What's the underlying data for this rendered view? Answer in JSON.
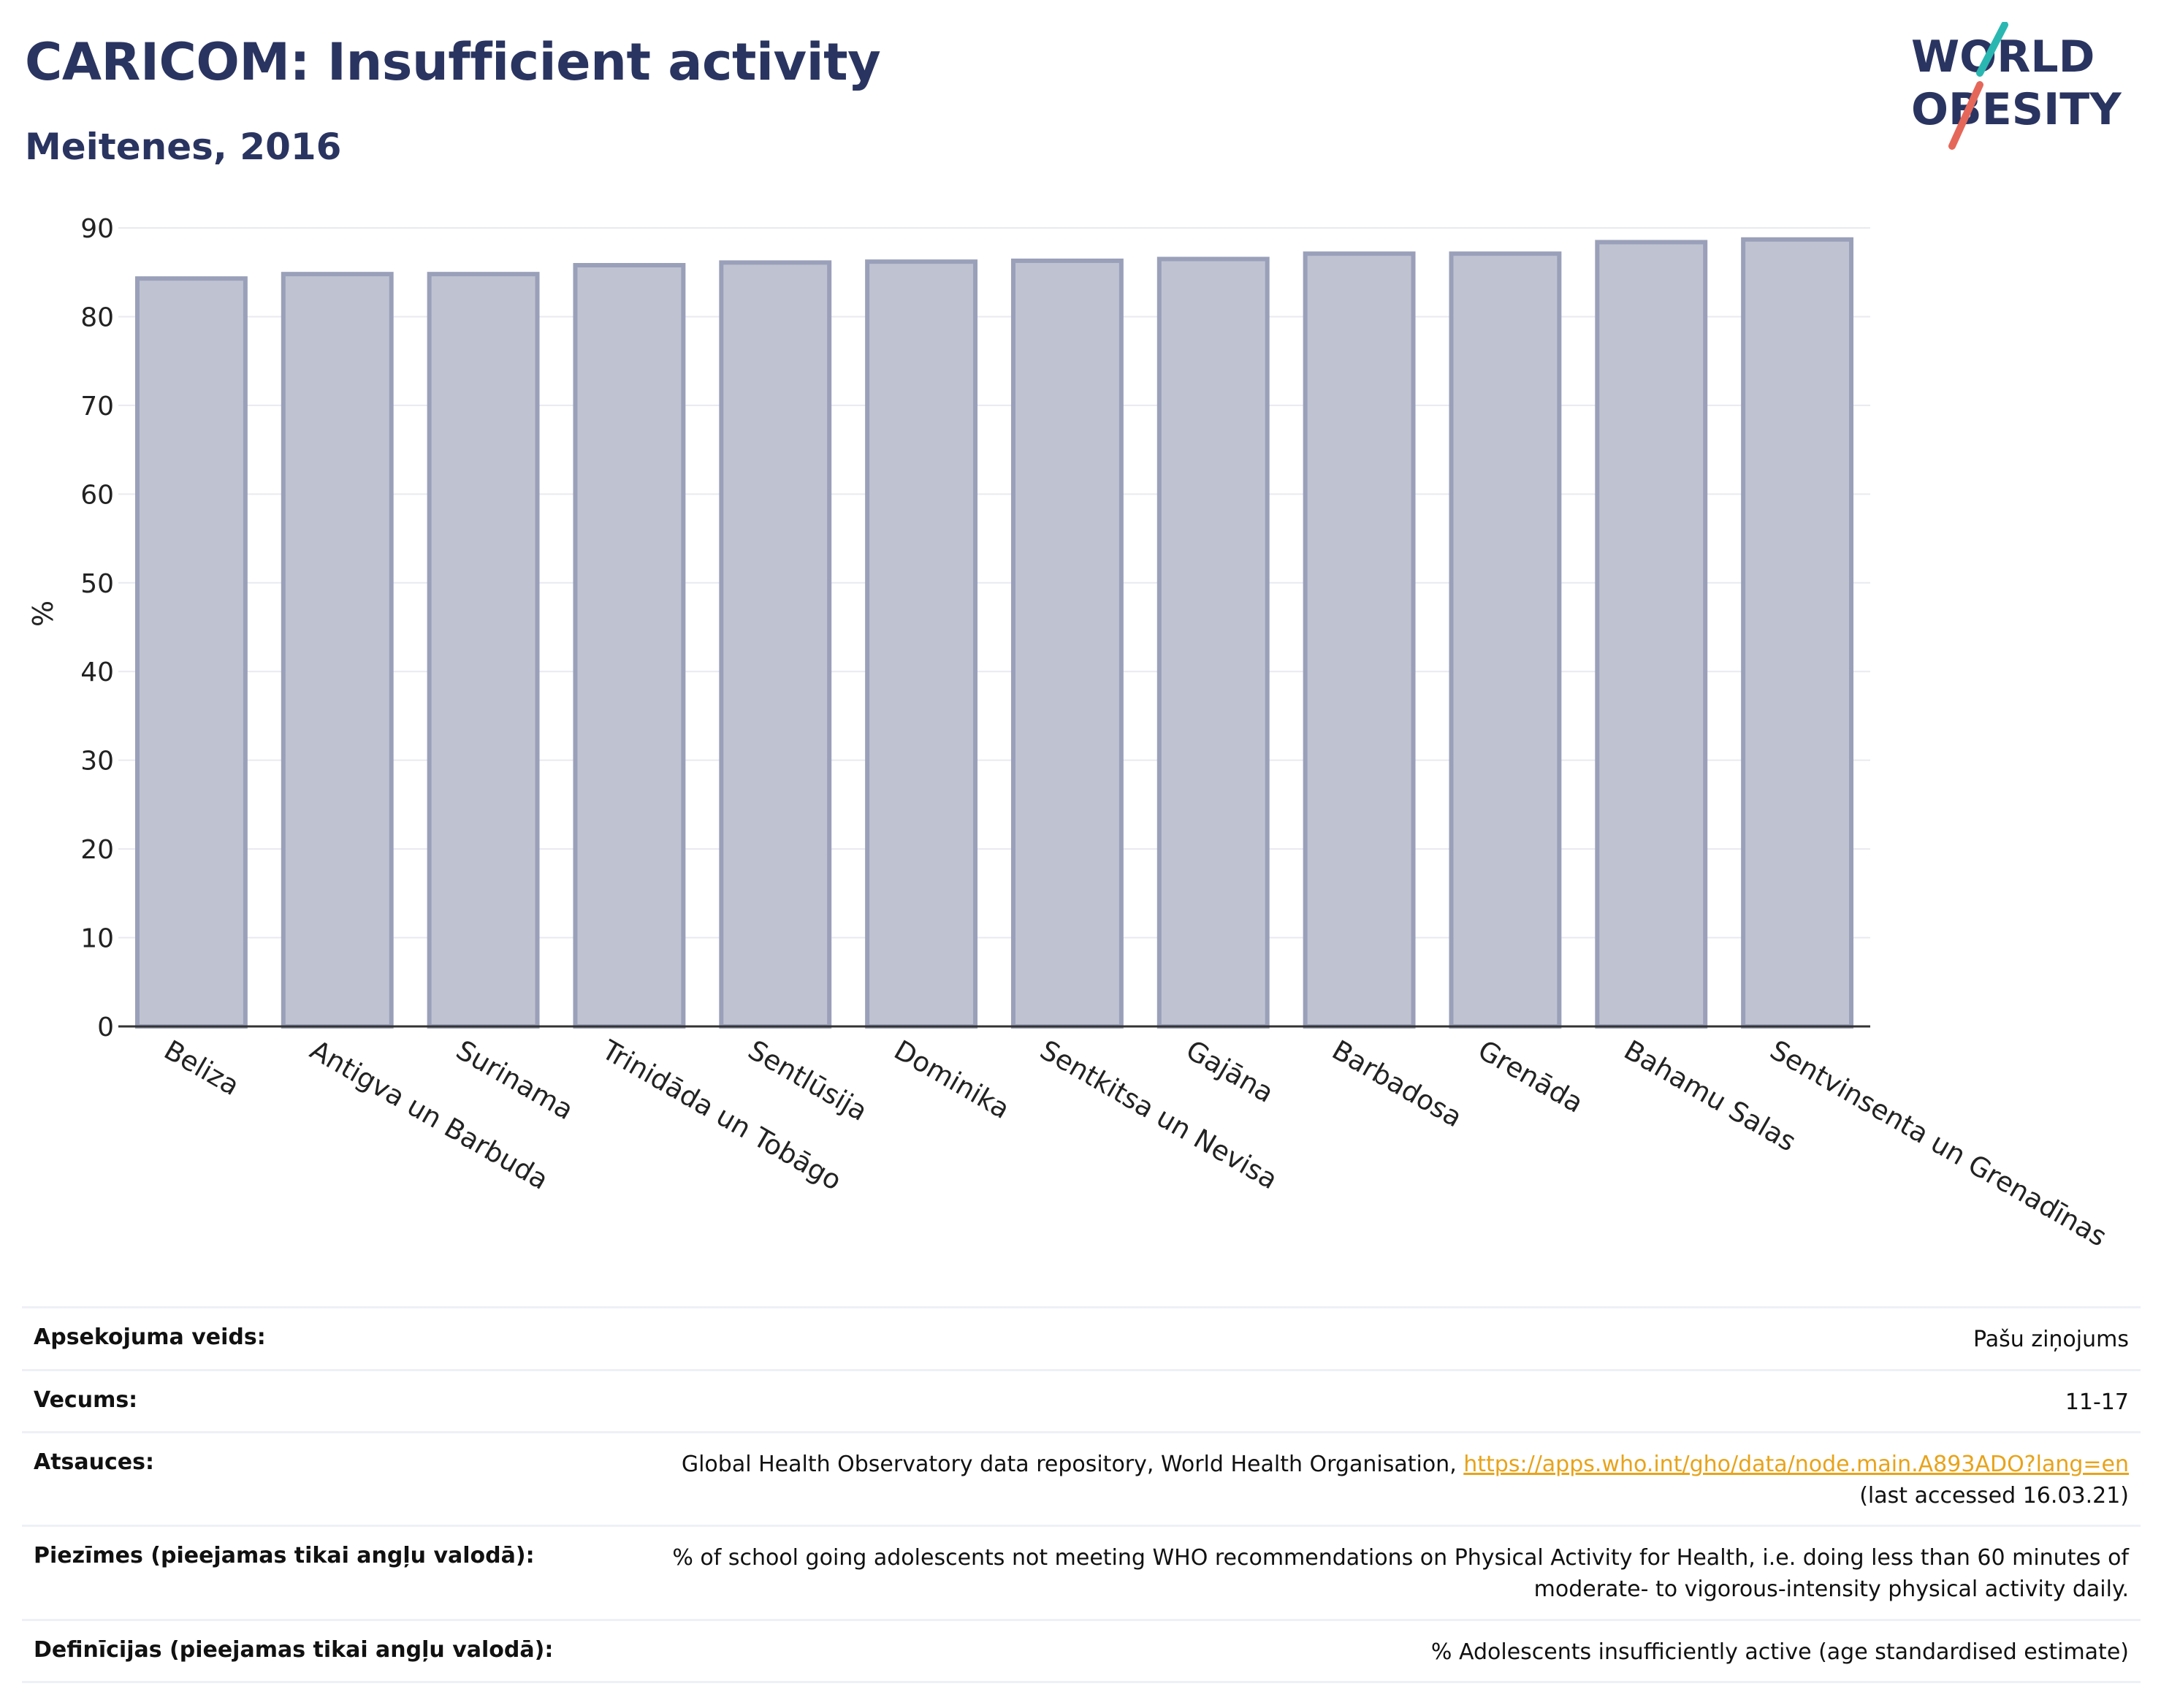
{
  "header": {
    "title": "CARICOM: Insufficient activity",
    "subtitle": "Meitenes, 2016",
    "logo_line1": "WORLD",
    "logo_line2": "OBESITY"
  },
  "colors": {
    "bar_fill": "#bfc3d1",
    "bar_stroke": "#9aa0b9",
    "title": "#2a3460",
    "link": "#e8a31a",
    "logo_teal": "#2ab7b2",
    "logo_coral": "#e5675a"
  },
  "chart_data": {
    "type": "bar",
    "categories": [
      "Beliza",
      "Antigva un Barbuda",
      "Surinama",
      "Trinidāda un Tobāgo",
      "Sentlūsija",
      "Dominika",
      "Sentkitsa un Nevisa",
      "Gajāna",
      "Barbadosa",
      "Grenāda",
      "Bahamu Salas",
      "Sentvinsenta un Grenadīnas"
    ],
    "values": [
      84.3,
      84.8,
      84.8,
      85.8,
      86.1,
      86.2,
      86.3,
      86.5,
      87.1,
      87.1,
      88.4,
      88.7
    ],
    "ylabel": "%",
    "ylim": [
      0,
      90
    ],
    "yticks": [
      0,
      10,
      20,
      30,
      40,
      50,
      60,
      70,
      80,
      90
    ],
    "grid": true,
    "legend": "none"
  },
  "info": [
    {
      "label": "Apsekojuma veids:",
      "value": "Pašu ziņojums"
    },
    {
      "label": "Vecums:",
      "value": "11-17"
    },
    {
      "label": "Atsauces:",
      "value": "Global Health Observatory data repository, World Health Organisation, ",
      "link": "https://apps.who.int/gho/data/node.main.A893ADO?lang=en",
      "value2": "(last accessed 16.03.21)"
    },
    {
      "label": "Piezīmes (pieejamas tikai angļu valodā):",
      "value": "% of school going adolescents not meeting WHO recommendations on Physical Activity for Health, i.e. doing less than 60 minutes of",
      "value2": "moderate- to vigorous-intensity physical activity daily."
    },
    {
      "label": "Definīcijas (pieejamas tikai angļu valodā):",
      "value": "% Adolescents insufficiently active (age standardised estimate)"
    }
  ]
}
